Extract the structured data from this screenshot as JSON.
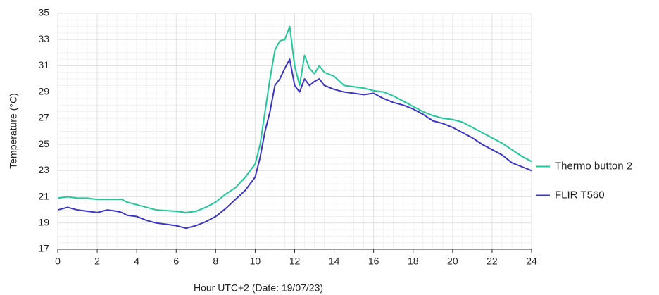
{
  "chart_data": {
    "type": "line",
    "x_label": "Hour UTC+2 (Date: 19/07/23)",
    "y_label": "Temperature (°C)",
    "x": [
      0,
      0.5,
      1,
      1.5,
      2,
      2.5,
      3,
      3.25,
      3.5,
      4,
      4.5,
      5,
      5.5,
      6,
      6.5,
      7,
      7.5,
      8,
      8.5,
      9,
      9.5,
      10,
      10.25,
      10.5,
      10.75,
      11,
      11.25,
      11.5,
      11.75,
      12,
      12.25,
      12.5,
      12.75,
      13,
      13.25,
      13.5,
      14,
      14.5,
      15,
      15.5,
      16,
      16.5,
      17,
      17.5,
      18,
      18.5,
      19,
      19.5,
      20,
      20.5,
      21,
      21.5,
      22,
      22.5,
      23,
      23.5,
      24
    ],
    "series": [
      {
        "name": "Thermo button 2",
        "color": "#22c79a",
        "values": [
          20.9,
          21.0,
          20.9,
          20.9,
          20.8,
          20.8,
          20.8,
          20.8,
          20.6,
          20.4,
          20.2,
          20.0,
          19.95,
          19.9,
          19.8,
          19.9,
          20.2,
          20.6,
          21.2,
          21.7,
          22.5,
          23.5,
          25,
          27.5,
          30,
          32.2,
          32.9,
          33.0,
          34.0,
          31,
          29.5,
          31.8,
          30.8,
          30.4,
          31,
          30.5,
          30.2,
          29.5,
          29.4,
          29.3,
          29.1,
          29.0,
          28.7,
          28.3,
          27.9,
          27.5,
          27.2,
          27.0,
          26.9,
          26.7,
          26.3,
          25.9,
          25.5,
          25.1,
          24.6,
          24.1,
          23.7
        ]
      },
      {
        "name": "FLIR T560",
        "color": "#3b35c4",
        "values": [
          20.0,
          20.2,
          20.0,
          19.9,
          19.8,
          20.0,
          19.9,
          19.8,
          19.6,
          19.5,
          19.2,
          19.0,
          18.9,
          18.8,
          18.6,
          18.8,
          19.1,
          19.5,
          20.1,
          20.8,
          21.5,
          22.5,
          24,
          26,
          27.5,
          29.5,
          30,
          30.8,
          31.5,
          29.5,
          29,
          30,
          29.5,
          29.8,
          30.0,
          29.5,
          29.2,
          29.0,
          28.9,
          28.8,
          28.9,
          28.5,
          28.2,
          28.0,
          27.7,
          27.3,
          26.8,
          26.6,
          26.3,
          25.9,
          25.5,
          25.0,
          24.6,
          24.2,
          23.6,
          23.3,
          23.0
        ]
      }
    ],
    "xlim": [
      0,
      24
    ],
    "xticks": [
      0,
      2,
      4,
      6,
      8,
      10,
      12,
      14,
      16,
      18,
      20,
      22,
      24
    ],
    "ylim": [
      17,
      35
    ],
    "yticks": [
      17,
      19,
      21,
      23,
      25,
      27,
      29,
      31,
      33,
      35
    ],
    "grid": true,
    "legend": "right"
  }
}
